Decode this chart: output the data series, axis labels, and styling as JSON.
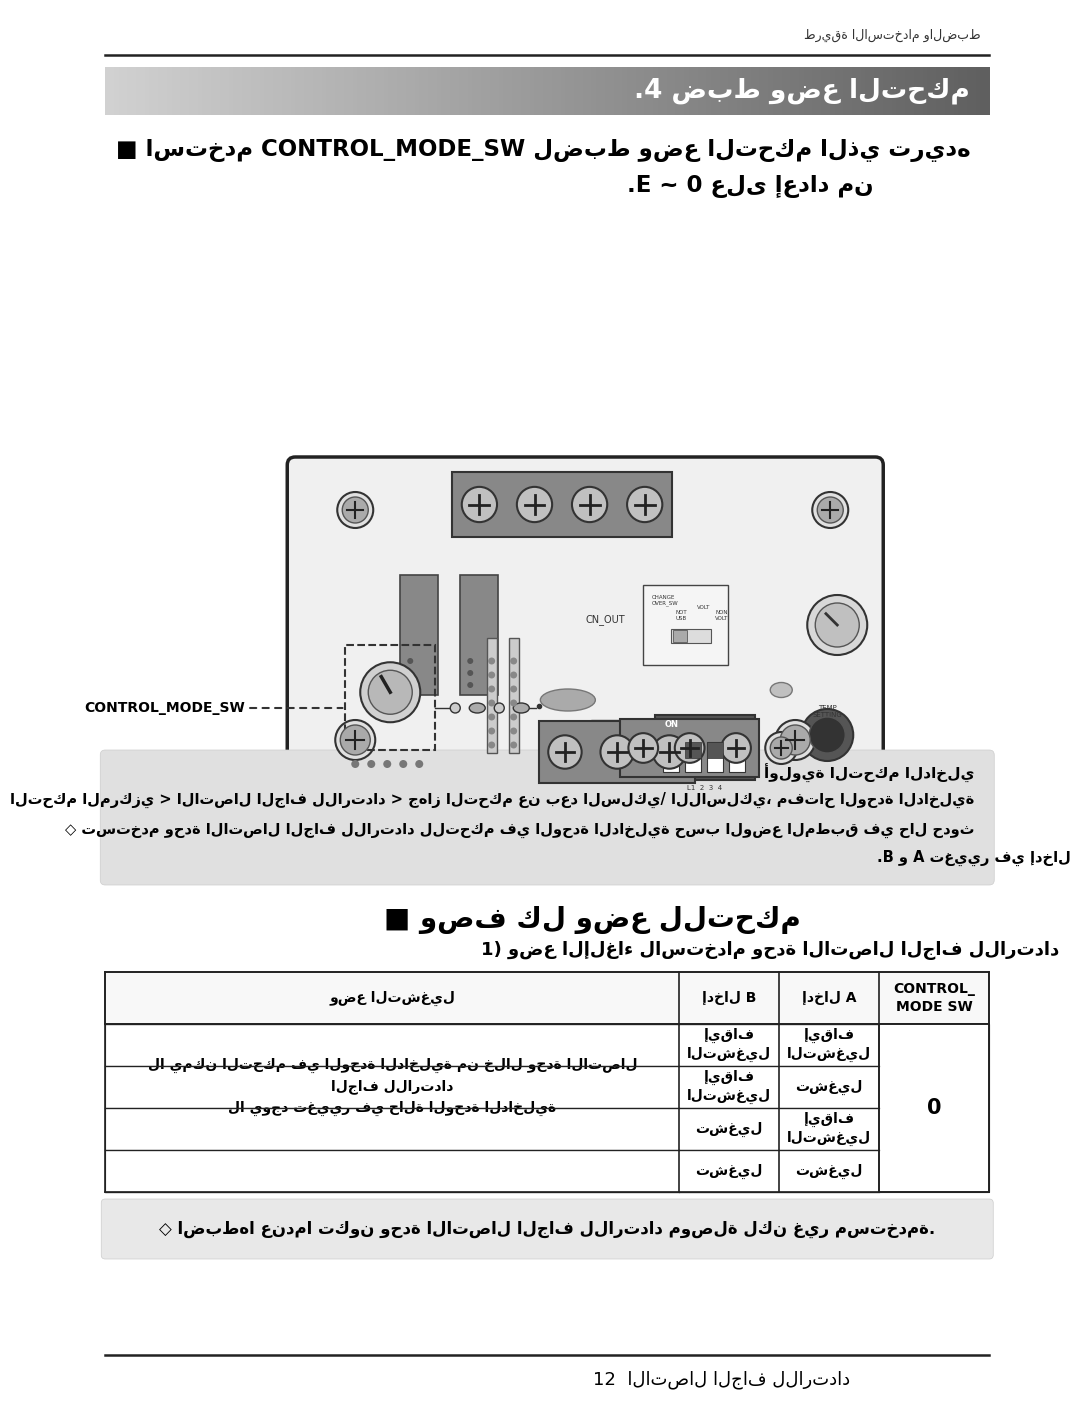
{
  "page_bg": "#ffffff",
  "top_label": "طريقة الاستخدام والضبط",
  "section_header": ".4 ضبط وضع التحكم",
  "intro_line1": "■ استخدم CONTROL_MODE_SW لضبط وضع التحكم الذي تريده",
  "intro_line2": ".E ~ 0 على إعداد من",
  "control_label": "CONTROL_MODE_SW",
  "note_line1": "◇ أولوية التحكم الداخلي",
  "note_line2": "التحكم المركزي > الاتصال الجاف للارتداد > جهاز التحكم عن بعد السلكي/ اللاسلكي، مفتاح الوحدة الداخلية",
  "note_line3": "◇ تستخدم وحدة الاتصال الجاف للارتداد للتحكم في الوحدة الداخلية حسب الوضع المطبق في حال حدوث",
  "note_line4": ".B و A تغيير في إدخال",
  "section2_header": "■ وصف كل وضع للتحكم",
  "subsection1": "1) وضع الإلغاء لاستخدام وحدة الاتصال الجاف للارتداد",
  "col_header_0": "CONTROL_\nMODE SW",
  "col_header_1": "إدخال A",
  "col_header_2": "إدخال B",
  "col_header_3": "وضع التشغيل",
  "row_sw": "0",
  "rows_a": [
    "إيقاف\nالتشغيل",
    "تشغيل",
    "إيقاف\nالتشغيل",
    "تشغيل"
  ],
  "rows_b": [
    "إيقاف\nالتشغيل",
    "إيقاف\nالتشغيل",
    "تشغيل",
    "تشغيل"
  ],
  "rows_op": [
    "",
    "لا يمكن التحكم في الوحدة الداخلية من خلال وحدة الاتصال\nالجاف للارتداد\nلا يوجد تغيير في حالة الوحدة الداخلية",
    "",
    ""
  ],
  "bottom_note": "◇ اضبطها عندما تكون وحدة الاتصال الجاف للارتداد موصلة لكن غير مستخدمة.",
  "footer_text": "12  الاتصال الجاف للارتداد"
}
